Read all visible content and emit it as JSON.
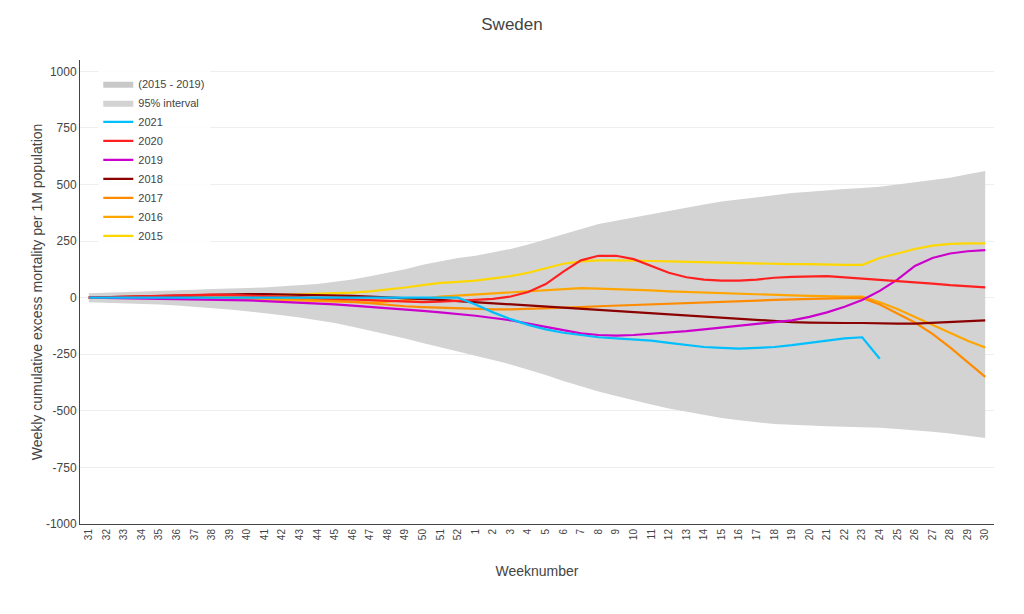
{
  "chart_data": {
    "type": "line",
    "title": "Sweden",
    "xlabel": "Weeknumber",
    "ylabel": "Weekly cumulative excess mortality per 1M population",
    "background_color": "#ffffff",
    "ylim": [
      -1000,
      1050
    ],
    "yticks": [
      -1000,
      -750,
      -500,
      -250,
      0,
      250,
      500,
      750,
      1000
    ],
    "grid": true,
    "legend": "upper left",
    "categories": [
      "31",
      "32",
      "33",
      "34",
      "35",
      "36",
      "37",
      "38",
      "39",
      "40",
      "41",
      "42",
      "43",
      "44",
      "45",
      "46",
      "47",
      "48",
      "49",
      "50",
      "51",
      "52",
      "1",
      "2",
      "3",
      "4",
      "5",
      "6",
      "7",
      "8",
      "9",
      "10",
      "11",
      "12",
      "13",
      "14",
      "15",
      "16",
      "17",
      "18",
      "19",
      "20",
      "21",
      "22",
      "23",
      "24",
      "25",
      "26",
      "27",
      "28",
      "29",
      "30"
    ],
    "band": {
      "name": "95% interval",
      "color": "#d3d3d3",
      "upper": [
        20,
        22,
        25,
        28,
        30,
        32,
        35,
        38,
        40,
        42,
        45,
        50,
        55,
        60,
        70,
        80,
        95,
        110,
        125,
        145,
        160,
        175,
        185,
        200,
        215,
        235,
        258,
        282,
        305,
        325,
        340,
        355,
        370,
        385,
        400,
        412,
        425,
        435,
        445,
        455,
        462,
        468,
        475,
        480,
        485,
        490,
        500,
        510,
        520,
        530,
        545,
        560
      ],
      "lower": [
        -20,
        -22,
        -25,
        -28,
        -30,
        -35,
        -40,
        -45,
        -52,
        -60,
        -68,
        -78,
        -88,
        -100,
        -112,
        -128,
        -145,
        -162,
        -180,
        -200,
        -218,
        -238,
        -255,
        -275,
        -295,
        -318,
        -342,
        -368,
        -392,
        -415,
        -435,
        -455,
        -472,
        -490,
        -505,
        -520,
        -532,
        -542,
        -550,
        -558,
        -562,
        -566,
        -568,
        -570,
        -572,
        -575,
        -580,
        -585,
        -592,
        -600,
        -610,
        -620
      ]
    },
    "legend_extra": [
      {
        "name": "(2015 - 2019)",
        "color": "#c8c8c8"
      }
    ],
    "series": [
      {
        "name": "2015",
        "color": "#FFD700",
        "values": [
          0,
          2,
          3,
          5,
          6,
          7,
          8,
          8,
          7,
          8,
          10,
          12,
          14,
          16,
          18,
          22,
          28,
          35,
          45,
          55,
          65,
          70,
          75,
          85,
          95,
          110,
          130,
          150,
          160,
          165,
          165,
          165,
          162,
          160,
          158,
          158,
          155,
          155,
          152,
          150,
          148,
          148,
          145,
          145,
          145,
          175,
          195,
          215,
          230,
          238,
          240,
          240
        ]
      },
      {
        "name": "2016",
        "color": "#FFA500",
        "values": [
          0,
          1,
          2,
          3,
          3,
          2,
          1,
          0,
          -2,
          -5,
          -8,
          -10,
          -12,
          -15,
          -18,
          -20,
          -22,
          -18,
          -12,
          -5,
          5,
          10,
          15,
          20,
          25,
          30,
          35,
          40,
          42,
          40,
          38,
          35,
          32,
          28,
          25,
          22,
          20,
          18,
          15,
          12,
          10,
          8,
          5,
          5,
          5,
          -20,
          -50,
          -85,
          -120,
          -155,
          -190,
          -220
        ]
      },
      {
        "name": "2017",
        "color": "#FF8C00",
        "values": [
          0,
          1,
          2,
          3,
          4,
          5,
          5,
          4,
          3,
          2,
          0,
          -2,
          -5,
          -8,
          -12,
          -18,
          -25,
          -32,
          -38,
          -42,
          -45,
          -48,
          -50,
          -52,
          -52,
          -50,
          -48,
          -45,
          -42,
          -38,
          -35,
          -32,
          -28,
          -25,
          -22,
          -20,
          -18,
          -15,
          -12,
          -10,
          -8,
          -5,
          -3,
          -2,
          -1,
          -30,
          -70,
          -110,
          -160,
          -220,
          -285,
          -350
        ]
      },
      {
        "name": "2018",
        "color": "#8B0000",
        "values": [
          0,
          2,
          4,
          6,
          8,
          10,
          12,
          14,
          15,
          16,
          16,
          15,
          14,
          12,
          10,
          8,
          5,
          2,
          -2,
          -6,
          -10,
          -15,
          -20,
          -25,
          -30,
          -35,
          -40,
          -45,
          -50,
          -55,
          -60,
          -65,
          -70,
          -75,
          -80,
          -85,
          -90,
          -95,
          -100,
          -105,
          -108,
          -110,
          -112,
          -112,
          -112,
          -115,
          -115,
          -115,
          -112,
          -108,
          -105,
          -100
        ]
      },
      {
        "name": "2019",
        "color": "#CC00CC",
        "values": [
          0,
          -1,
          -2,
          -3,
          -4,
          -5,
          -6,
          -8,
          -10,
          -12,
          -15,
          -18,
          -22,
          -26,
          -30,
          -35,
          -40,
          -45,
          -50,
          -58,
          -65,
          -72,
          -80,
          -90,
          -100,
          -115,
          -130,
          -145,
          -158,
          -165,
          -168,
          -165,
          -160,
          -155,
          -148,
          -140,
          -132,
          -125,
          -118,
          -110,
          -100,
          -85,
          -65,
          -40,
          -10,
          30,
          80,
          140,
          175,
          195,
          205,
          210
        ]
      },
      {
        "name": "2020",
        "color": "#FF2020",
        "values": [
          0,
          2,
          5,
          8,
          10,
          12,
          13,
          13,
          12,
          10,
          8,
          5,
          2,
          -2,
          -5,
          -8,
          -12,
          -15,
          -18,
          -20,
          -18,
          -15,
          -10,
          -5,
          5,
          25,
          60,
          115,
          165,
          185,
          185,
          170,
          140,
          110,
          90,
          80,
          75,
          75,
          80,
          88,
          92,
          95,
          95,
          90,
          85,
          80,
          75,
          68,
          62,
          55,
          50,
          45
        ]
      },
      {
        "name": "2021",
        "color": "#00BFFF",
        "values": [
          0,
          0,
          0,
          0,
          0,
          0,
          0,
          0,
          0,
          0,
          0,
          0,
          0,
          0,
          0,
          0,
          0,
          0,
          0,
          0,
          0,
          0,
          -30,
          -65,
          -95,
          -120,
          -140,
          -155,
          -165,
          -175,
          -180,
          -185,
          -190,
          -200,
          -210,
          -218,
          -222,
          -225,
          -222,
          -218,
          -210,
          -200,
          -190,
          -180,
          -175,
          -270,
          null,
          null,
          null,
          null,
          null,
          null
        ]
      }
    ]
  }
}
